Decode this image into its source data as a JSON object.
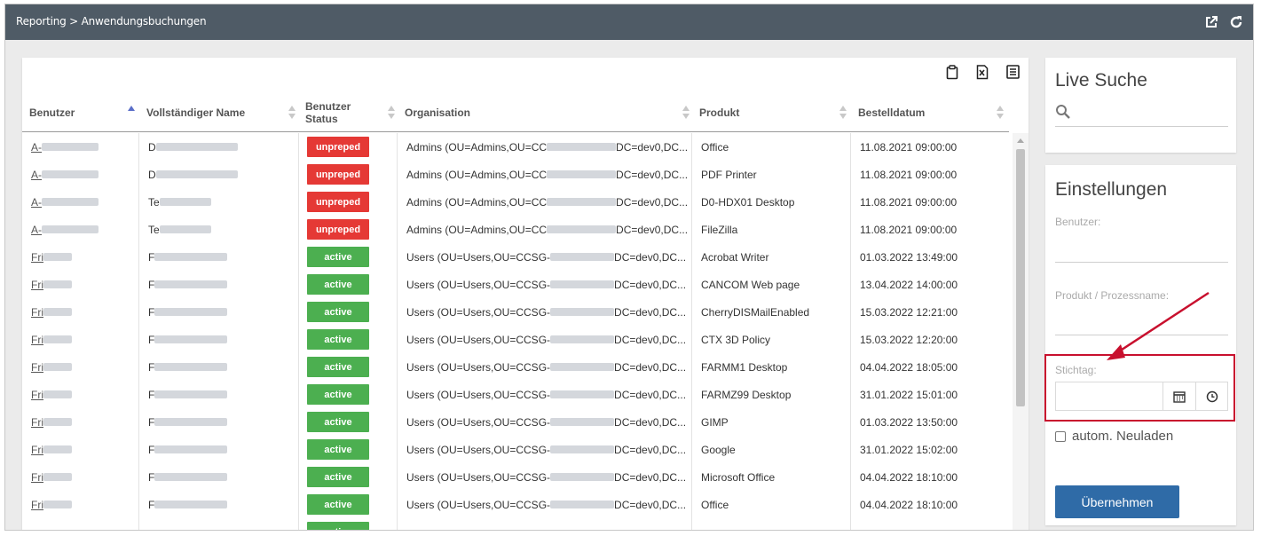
{
  "titlebar": {
    "breadcrumb": "Reporting > Anwendungsbuchungen",
    "icons": [
      "external-link-icon",
      "refresh-icon"
    ]
  },
  "toolbar": {
    "icons": [
      "clipboard-icon",
      "excel-icon",
      "list-icon"
    ]
  },
  "table": {
    "columns": [
      {
        "label": "Benutzer",
        "sort": "asc"
      },
      {
        "label": "Vollständiger Name",
        "sort": "none"
      },
      {
        "label": "Benutzer Status",
        "sort": "none"
      },
      {
        "label": "Organisation",
        "sort": "none"
      },
      {
        "label": "Produkt",
        "sort": "none"
      },
      {
        "label": "Bestelldatum",
        "sort": "none"
      }
    ],
    "rows": [
      {
        "user": "A-",
        "name": "D",
        "status": "unpreped",
        "org_start": "Admins (OU=Admins,OU=CC",
        "org_end": "DC=dev0,DC...",
        "product": "Office",
        "date": "11.08.2021 09:00:00"
      },
      {
        "user": "A-",
        "name": "D",
        "status": "unpreped",
        "org_start": "Admins (OU=Admins,OU=CC",
        "org_end": "DC=dev0,DC...",
        "product": "PDF Printer",
        "date": "11.08.2021 09:00:00"
      },
      {
        "user": "A-",
        "name": "Te",
        "status": "unpreped",
        "org_start": "Admins (OU=Admins,OU=CC",
        "org_end": "DC=dev0,DC...",
        "product": "D0-HDX01 Desktop",
        "date": "11.08.2021 09:00:00"
      },
      {
        "user": "A-",
        "name": "Te",
        "status": "unpreped",
        "org_start": "Admins (OU=Admins,OU=CC",
        "org_end": "DC=dev0,DC...",
        "product": "FileZilla",
        "date": "11.08.2021 09:00:00"
      },
      {
        "user": "Fri",
        "name": "F",
        "status": "active",
        "org_start": "Users (OU=Users,OU=CCSG-",
        "org_end": "DC=dev0,DC...",
        "product": "Acrobat Writer",
        "date": "01.03.2022 13:49:00"
      },
      {
        "user": "Fri",
        "name": "F",
        "status": "active",
        "org_start": "Users (OU=Users,OU=CCSG-",
        "org_end": "DC=dev0,DC...",
        "product": "CANCOM Web page",
        "date": "13.04.2022 14:00:00"
      },
      {
        "user": "Fri",
        "name": "F",
        "status": "active",
        "org_start": "Users (OU=Users,OU=CCSG-",
        "org_end": "DC=dev0,DC...",
        "product": "CherryDISMailEnabled",
        "date": "15.03.2022 12:21:00"
      },
      {
        "user": "Fri",
        "name": "F",
        "status": "active",
        "org_start": "Users (OU=Users,OU=CCSG-",
        "org_end": "DC=dev0,DC...",
        "product": "CTX 3D Policy",
        "date": "15.03.2022 12:20:00"
      },
      {
        "user": "Fri",
        "name": "F",
        "status": "active",
        "org_start": "Users (OU=Users,OU=CCSG-",
        "org_end": "DC=dev0,DC...",
        "product": "FARMM1 Desktop",
        "date": "04.04.2022 18:05:00"
      },
      {
        "user": "Fri",
        "name": "F",
        "status": "active",
        "org_start": "Users (OU=Users,OU=CCSG-",
        "org_end": "DC=dev0,DC...",
        "product": "FARMZ99 Desktop",
        "date": "31.01.2022 15:01:00"
      },
      {
        "user": "Fri",
        "name": "F",
        "status": "active",
        "org_start": "Users (OU=Users,OU=CCSG-",
        "org_end": "DC=dev0,DC...",
        "product": "GIMP",
        "date": "01.03.2022 13:50:00"
      },
      {
        "user": "Fri",
        "name": "F",
        "status": "active",
        "org_start": "Users (OU=Users,OU=CCSG-",
        "org_end": "DC=dev0,DC...",
        "product": "Google",
        "date": "31.01.2022 15:02:00"
      },
      {
        "user": "Fri",
        "name": "F",
        "status": "active",
        "org_start": "Users (OU=Users,OU=CCSG-",
        "org_end": "DC=dev0,DC...",
        "product": "Microsoft Office",
        "date": "04.04.2022 18:10:00"
      },
      {
        "user": "Fri",
        "name": "F",
        "status": "active",
        "org_start": "Users (OU=Users,OU=CCSG-",
        "org_end": "DC=dev0,DC...",
        "product": "Office",
        "date": "04.04.2022 18:10:00"
      },
      {
        "user": "",
        "name": "",
        "status": "active",
        "org_start": "",
        "org_end": "",
        "product": "",
        "date": ""
      }
    ]
  },
  "live_search": {
    "title": "Live Suche",
    "placeholder": ""
  },
  "settings": {
    "title": "Einstellungen",
    "user_label": "Benutzer:",
    "user_value": "",
    "product_label": "Produkt / Prozessname:",
    "product_value": "",
    "date_label": "Stichtag:",
    "date_value": "",
    "autoreload_label": "autom. Neuladen",
    "autoreload_checked": false,
    "apply_label": "Übernehmen"
  },
  "colors": {
    "titlebar": "#4f5b66",
    "unpreped": "#e53935",
    "active": "#4caf50",
    "apply": "#2f6ba7",
    "annotation": "#c8102e"
  }
}
